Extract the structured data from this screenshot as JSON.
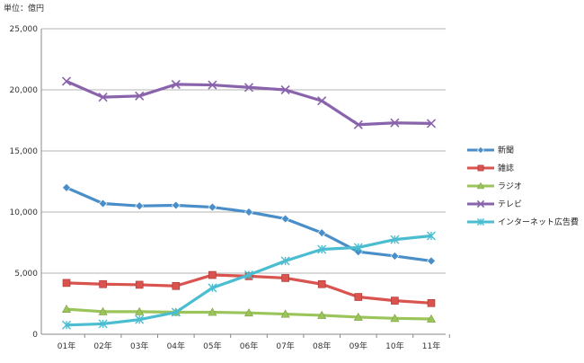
{
  "chart_data": {
    "type": "line",
    "unit_label": "単位：億円",
    "categories": [
      "01年",
      "02年",
      "03年",
      "04年",
      "05年",
      "06年",
      "07年",
      "08年",
      "09年",
      "10年",
      "11年"
    ],
    "ylim": [
      0,
      25000
    ],
    "yticks": [
      "0",
      "5,000",
      "10,000",
      "15,000",
      "20,000",
      "25,000"
    ],
    "grid": true,
    "legend_position": "right",
    "series": [
      {
        "name": "新聞",
        "color": "#4a8ec9",
        "marker": "diamond",
        "values": [
          12000,
          10700,
          10500,
          10550,
          10400,
          10000,
          9450,
          8300,
          6750,
          6400,
          6000
        ]
      },
      {
        "name": "雑誌",
        "color": "#d9534f",
        "marker": "square",
        "values": [
          4200,
          4100,
          4050,
          3950,
          4850,
          4750,
          4600,
          4100,
          3050,
          2750,
          2550
        ]
      },
      {
        "name": "ラジオ",
        "color": "#9bc55a",
        "marker": "triangle",
        "values": [
          2050,
          1850,
          1850,
          1800,
          1800,
          1750,
          1650,
          1550,
          1400,
          1300,
          1250
        ]
      },
      {
        "name": "テレビ",
        "color": "#8a63ad",
        "marker": "x",
        "values": [
          20700,
          19400,
          19500,
          20450,
          20400,
          20200,
          20000,
          19100,
          17150,
          17300,
          17250
        ]
      },
      {
        "name": "インターネット広告費",
        "color": "#4bbdd0",
        "marker": "star",
        "values": [
          750,
          850,
          1200,
          1800,
          3800,
          4850,
          6000,
          6950,
          7100,
          7750,
          8050
        ]
      }
    ]
  }
}
